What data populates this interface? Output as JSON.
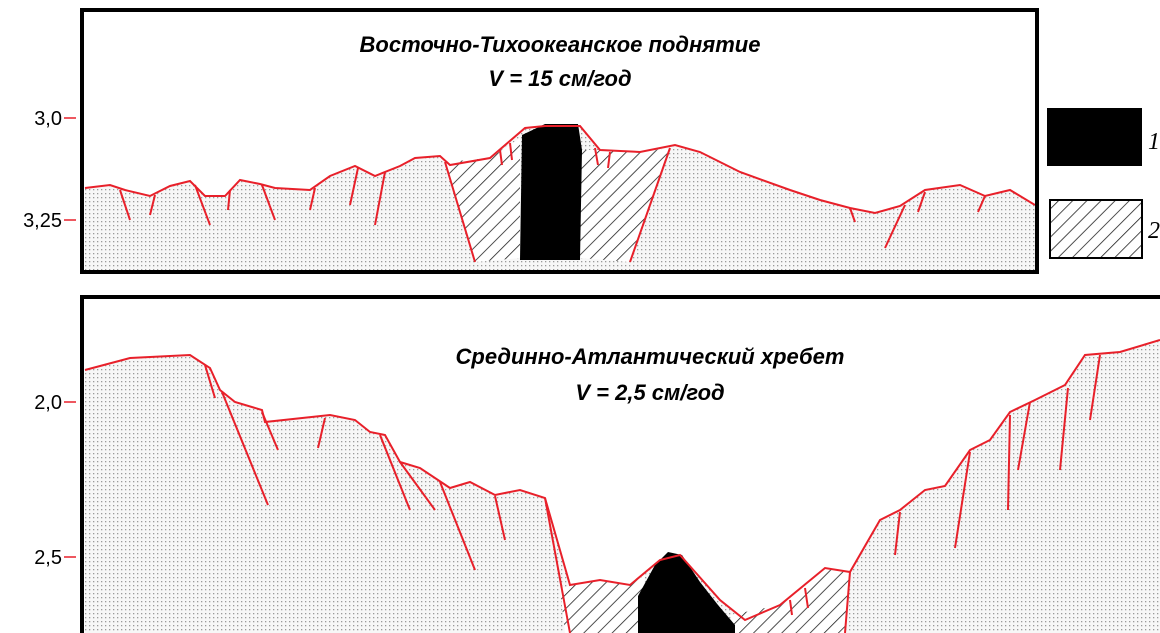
{
  "panels": [
    {
      "title": "Восточно-Тихоокеанское поднятие",
      "subtitle": "V = 15 см/год",
      "ticks": [
        "3,0",
        "3,25"
      ]
    },
    {
      "title": "Срединно-Атлантический хребет",
      "subtitle": "V = 2,5 см/год",
      "ticks": [
        "2,0",
        "2,5"
      ]
    }
  ],
  "legend": [
    {
      "label": "1"
    },
    {
      "label": "2"
    }
  ]
}
